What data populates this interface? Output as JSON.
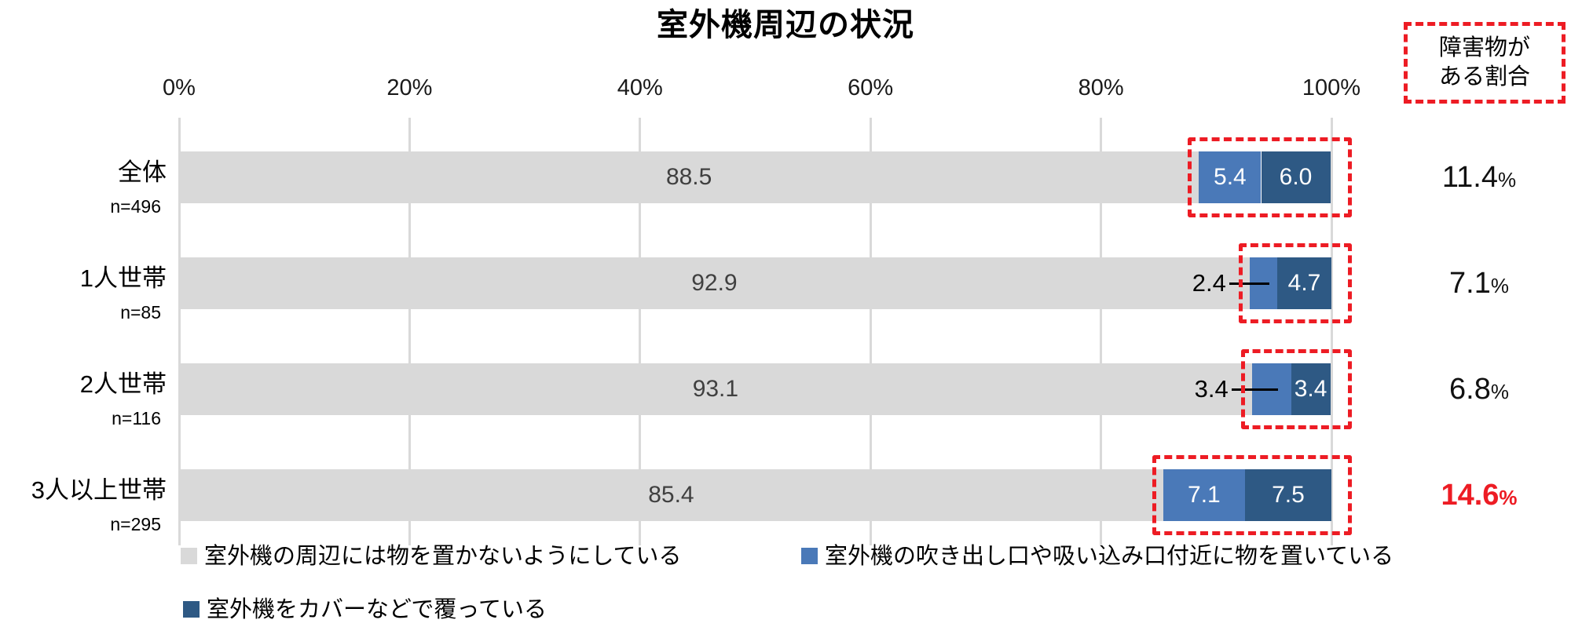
{
  "chart_data": {
    "type": "bar",
    "orientation": "horizontal",
    "stacked": true,
    "title": "室外機周辺の状況",
    "x_axis": {
      "ticks": [
        "0%",
        "20%",
        "40%",
        "60%",
        "80%",
        "100%"
      ],
      "range": [
        0,
        100
      ],
      "grid": true
    },
    "legend_position": "bottom",
    "legend": [
      {
        "label": "室外機の周辺には物を置かないようにしている",
        "color": "#D9D9D9"
      },
      {
        "label": "室外機の吹き出し口や吸い込み口付近に物を置いている",
        "color": "#4A79B8"
      },
      {
        "label": "室外機をカバーなどで覆っている",
        "color": "#2E5984"
      }
    ],
    "rows": [
      {
        "category": "全体",
        "n": "n=496",
        "segments": [
          {
            "value": 88.5,
            "label": "88.5"
          },
          {
            "value": 5.4,
            "label": "5.4"
          },
          {
            "value": 6.0,
            "label": "6.0"
          }
        ],
        "middle_label_outside": false,
        "obstacle_rate": "11.4",
        "highlight": false
      },
      {
        "category": "1人世帯",
        "n": "n=85",
        "segments": [
          {
            "value": 92.9,
            "label": "92.9"
          },
          {
            "value": 2.4,
            "label": "2.4"
          },
          {
            "value": 4.7,
            "label": "4.7"
          }
        ],
        "middle_label_outside": true,
        "obstacle_rate": "7.1",
        "highlight": false
      },
      {
        "category": "2人世帯",
        "n": "n=116",
        "segments": [
          {
            "value": 93.1,
            "label": "93.1"
          },
          {
            "value": 3.4,
            "label": "3.4"
          },
          {
            "value": 3.4,
            "label": "3.4"
          }
        ],
        "middle_label_outside": true,
        "obstacle_rate": "6.8",
        "highlight": false
      },
      {
        "category": "3人以上世帯",
        "n": "n=295",
        "segments": [
          {
            "value": 85.4,
            "label": "85.4"
          },
          {
            "value": 7.1,
            "label": "7.1"
          },
          {
            "value": 7.5,
            "label": "7.5"
          }
        ],
        "middle_label_outside": false,
        "obstacle_rate": "14.6",
        "highlight": true
      }
    ],
    "annotation_box": {
      "lines": [
        "障害物が",
        "ある割合"
      ]
    },
    "obstacle_column": {
      "suffix": "%"
    },
    "colors": {
      "bar_gray": "#D9D9D9",
      "bar_blue": "#4A79B8",
      "bar_dark_blue": "#2E5984",
      "red": "#ED1C24",
      "gridline": "#D9D9D9",
      "gray_label_text": "#404040",
      "white_label_text": "#FFFFFF"
    }
  }
}
